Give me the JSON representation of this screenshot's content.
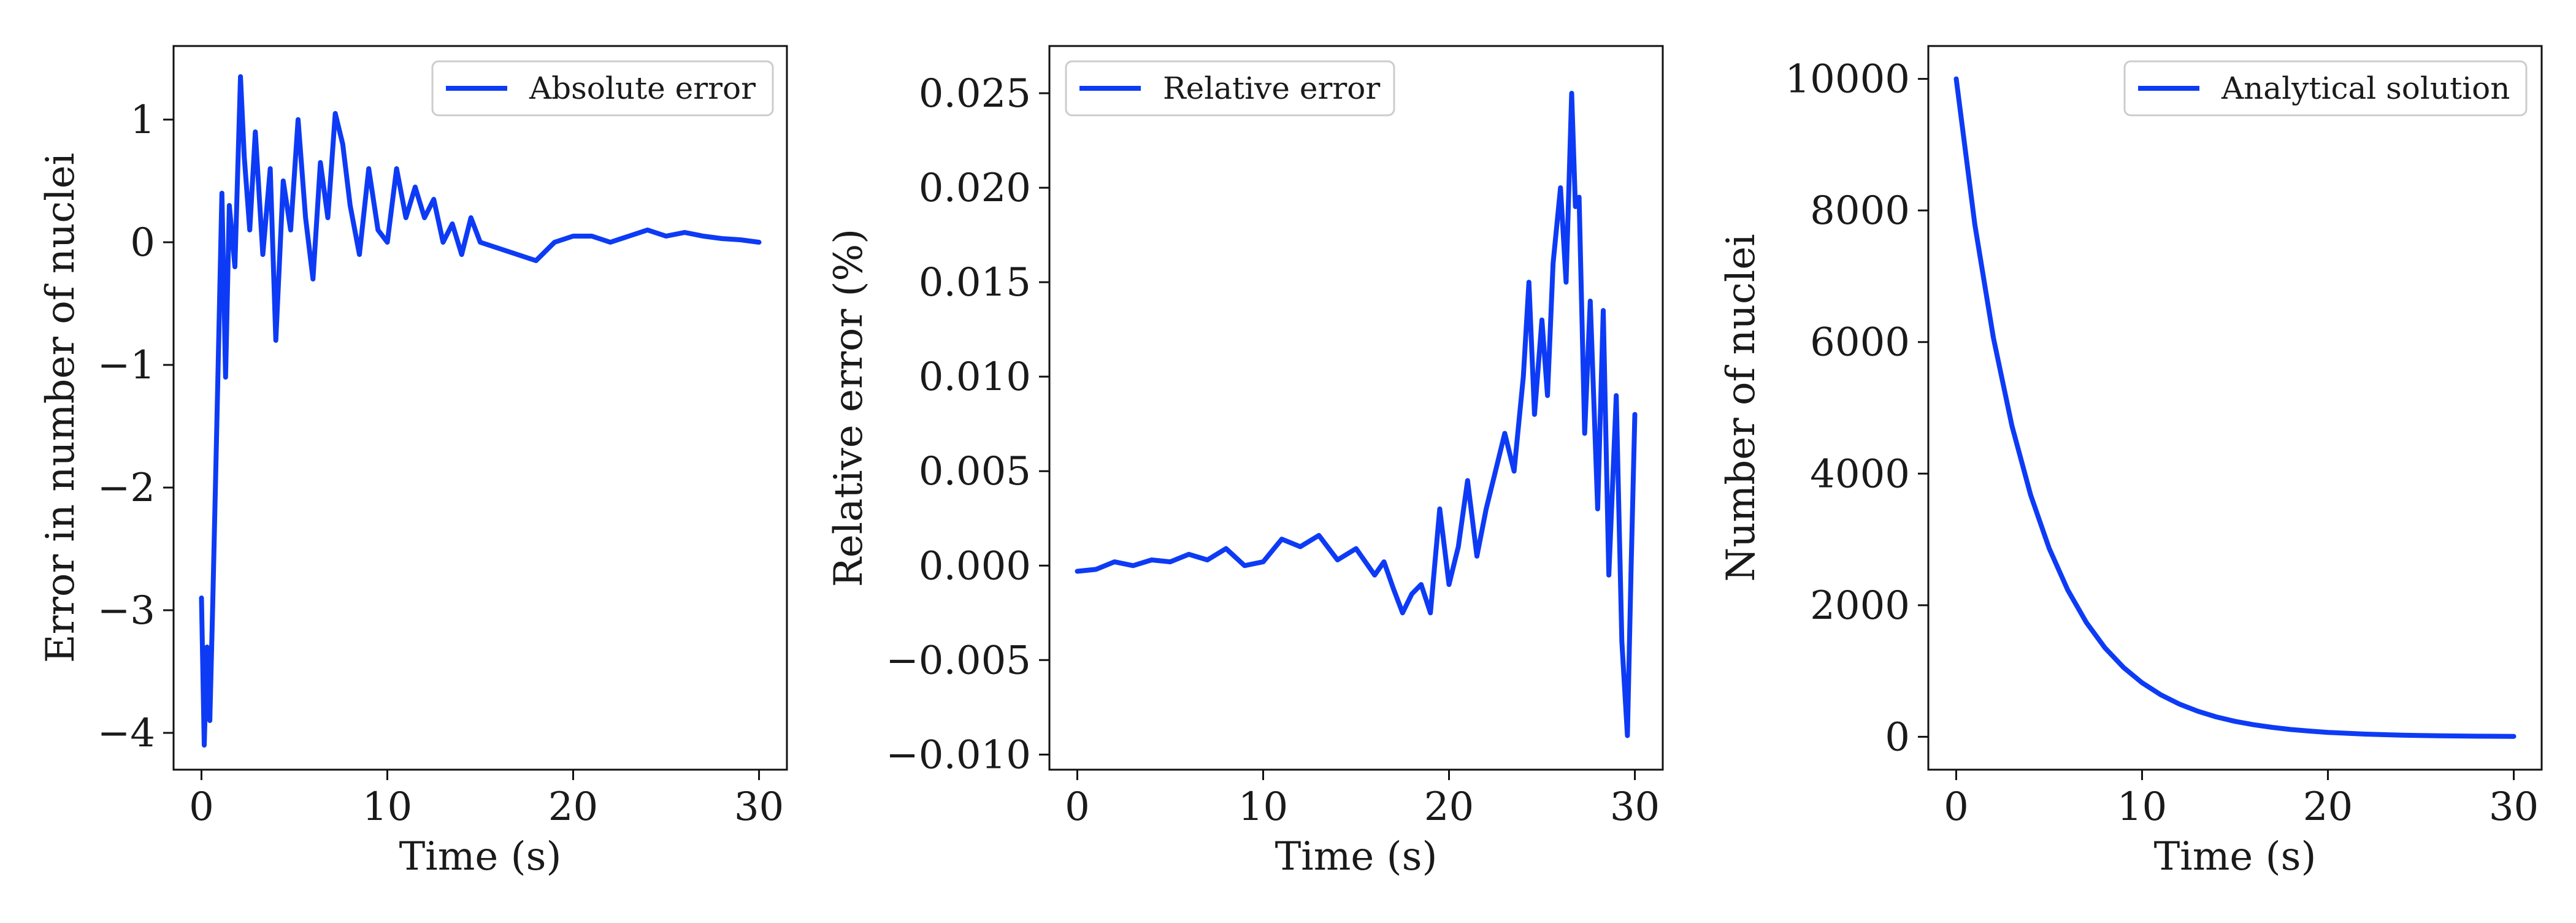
{
  "colors": {
    "series": "#0d3bf5",
    "axes": "#111111",
    "legend_border": "#cccccc",
    "background": "#ffffff"
  },
  "chart_data": [
    {
      "type": "line",
      "xlabel": "Time (s)",
      "ylabel": "Error in number of nuclei",
      "xlim": [
        -1.5,
        31.5
      ],
      "ylim": [
        -4.3,
        1.6
      ],
      "xticks": [
        0,
        10,
        20,
        30
      ],
      "xtick_labels": [
        "0",
        "10",
        "20",
        "30"
      ],
      "yticks": [
        -4,
        -3,
        -2,
        -1,
        0,
        1
      ],
      "ytick_labels": [
        "−4",
        "−3",
        "−2",
        "−1",
        "0",
        "1"
      ],
      "legend": "top-right",
      "grid": false,
      "series": [
        {
          "name": "Absolute error",
          "x": [
            0.0,
            0.15,
            0.3,
            0.45,
            0.6,
            0.75,
            0.9,
            1.1,
            1.3,
            1.5,
            1.8,
            2.1,
            2.3,
            2.6,
            2.9,
            3.3,
            3.7,
            4.0,
            4.4,
            4.8,
            5.2,
            5.6,
            6.0,
            6.4,
            6.8,
            7.2,
            7.6,
            8.0,
            8.5,
            9.0,
            9.5,
            10.0,
            10.5,
            11.0,
            11.5,
            12.0,
            12.5,
            13.0,
            13.5,
            14.0,
            14.5,
            15.0,
            16.0,
            17.0,
            18.0,
            19.0,
            20.0,
            21.0,
            22.0,
            23.0,
            24.0,
            25.0,
            26.0,
            27.0,
            28.0,
            29.0,
            30.0
          ],
          "y": [
            -2.9,
            -4.1,
            -3.3,
            -3.9,
            -3.0,
            -2.0,
            -1.0,
            0.4,
            -1.1,
            0.3,
            -0.2,
            1.35,
            0.7,
            0.1,
            0.9,
            -0.1,
            0.6,
            -0.8,
            0.5,
            0.1,
            1.0,
            0.2,
            -0.3,
            0.65,
            0.2,
            1.05,
            0.8,
            0.3,
            -0.1,
            0.6,
            0.1,
            0.0,
            0.6,
            0.2,
            0.45,
            0.2,
            0.35,
            0.0,
            0.15,
            -0.1,
            0.2,
            0.0,
            -0.05,
            -0.1,
            -0.15,
            0.0,
            0.05,
            0.05,
            0.0,
            0.05,
            0.1,
            0.05,
            0.08,
            0.05,
            0.03,
            0.02,
            0.0
          ]
        }
      ]
    },
    {
      "type": "line",
      "xlabel": "Time (s)",
      "ylabel": "Relative error (%)",
      "xlim": [
        -1.5,
        31.5
      ],
      "ylim": [
        -0.0108,
        0.0275
      ],
      "xticks": [
        0,
        10,
        20,
        30
      ],
      "xtick_labels": [
        "0",
        "10",
        "20",
        "30"
      ],
      "yticks": [
        -0.01,
        -0.005,
        0,
        0.005,
        0.01,
        0.015,
        0.02,
        0.025
      ],
      "ytick_labels": [
        "−0.010",
        "−0.005",
        "0.000",
        "0.005",
        "0.010",
        "0.015",
        "0.020",
        "0.025"
      ],
      "legend": "top-left",
      "grid": false,
      "series": [
        {
          "name": "Relative error",
          "x": [
            0.0,
            1.0,
            2.0,
            3.0,
            4.0,
            5.0,
            6.0,
            7.0,
            8.0,
            9.0,
            10.0,
            11.0,
            12.0,
            13.0,
            14.0,
            15.0,
            16.0,
            16.5,
            17.0,
            17.5,
            18.0,
            18.5,
            19.0,
            19.5,
            20.0,
            20.5,
            21.0,
            21.5,
            22.0,
            22.5,
            23.0,
            23.5,
            24.0,
            24.3,
            24.6,
            25.0,
            25.3,
            25.6,
            26.0,
            26.3,
            26.6,
            26.8,
            27.0,
            27.3,
            27.6,
            28.0,
            28.3,
            28.6,
            29.0,
            29.3,
            29.6,
            29.8,
            30.0
          ],
          "y": [
            -0.0003,
            -0.0002,
            0.0002,
            0.0,
            0.0003,
            0.0002,
            0.0006,
            0.0003,
            0.0009,
            0.0,
            0.0002,
            0.0014,
            0.001,
            0.0016,
            0.0003,
            0.0009,
            -0.0005,
            0.0002,
            -0.0012,
            -0.0025,
            -0.0015,
            -0.001,
            -0.0025,
            0.003,
            -0.001,
            0.001,
            0.0045,
            0.0005,
            0.003,
            0.005,
            0.007,
            0.005,
            0.01,
            0.015,
            0.008,
            0.013,
            0.009,
            0.016,
            0.02,
            0.015,
            0.025,
            0.019,
            0.0195,
            0.007,
            0.014,
            0.003,
            0.0135,
            -0.0005,
            0.009,
            -0.004,
            -0.009,
            0.0,
            0.008
          ]
        }
      ]
    },
    {
      "type": "line",
      "xlabel": "Time (s)",
      "ylabel": "Number of nuclei",
      "xlim": [
        -1.5,
        31.5
      ],
      "ylim": [
        -500,
        10500
      ],
      "xticks": [
        0,
        10,
        20,
        30
      ],
      "xtick_labels": [
        "0",
        "10",
        "20",
        "30"
      ],
      "yticks": [
        0,
        2000,
        4000,
        6000,
        8000,
        10000
      ],
      "ytick_labels": [
        "0",
        "2000",
        "4000",
        "6000",
        "8000",
        "10000"
      ],
      "legend": "top-right",
      "grid": false,
      "series": [
        {
          "name": "Analytical solution",
          "x": [
            0,
            1,
            2,
            3,
            4,
            5,
            6,
            7,
            8,
            9,
            10,
            11,
            12,
            13,
            14,
            15,
            16,
            17,
            18,
            19,
            20,
            22,
            24,
            26,
            28,
            30
          ],
          "y": [
            10000,
            7788,
            6065,
            4724,
            3679,
            2865,
            2231,
            1738,
            1353,
            1054,
            821,
            639,
            498,
            388,
            302,
            235,
            183,
            143,
            111,
            87,
            67,
            41,
            25,
            15,
            9,
            6
          ]
        }
      ]
    }
  ]
}
